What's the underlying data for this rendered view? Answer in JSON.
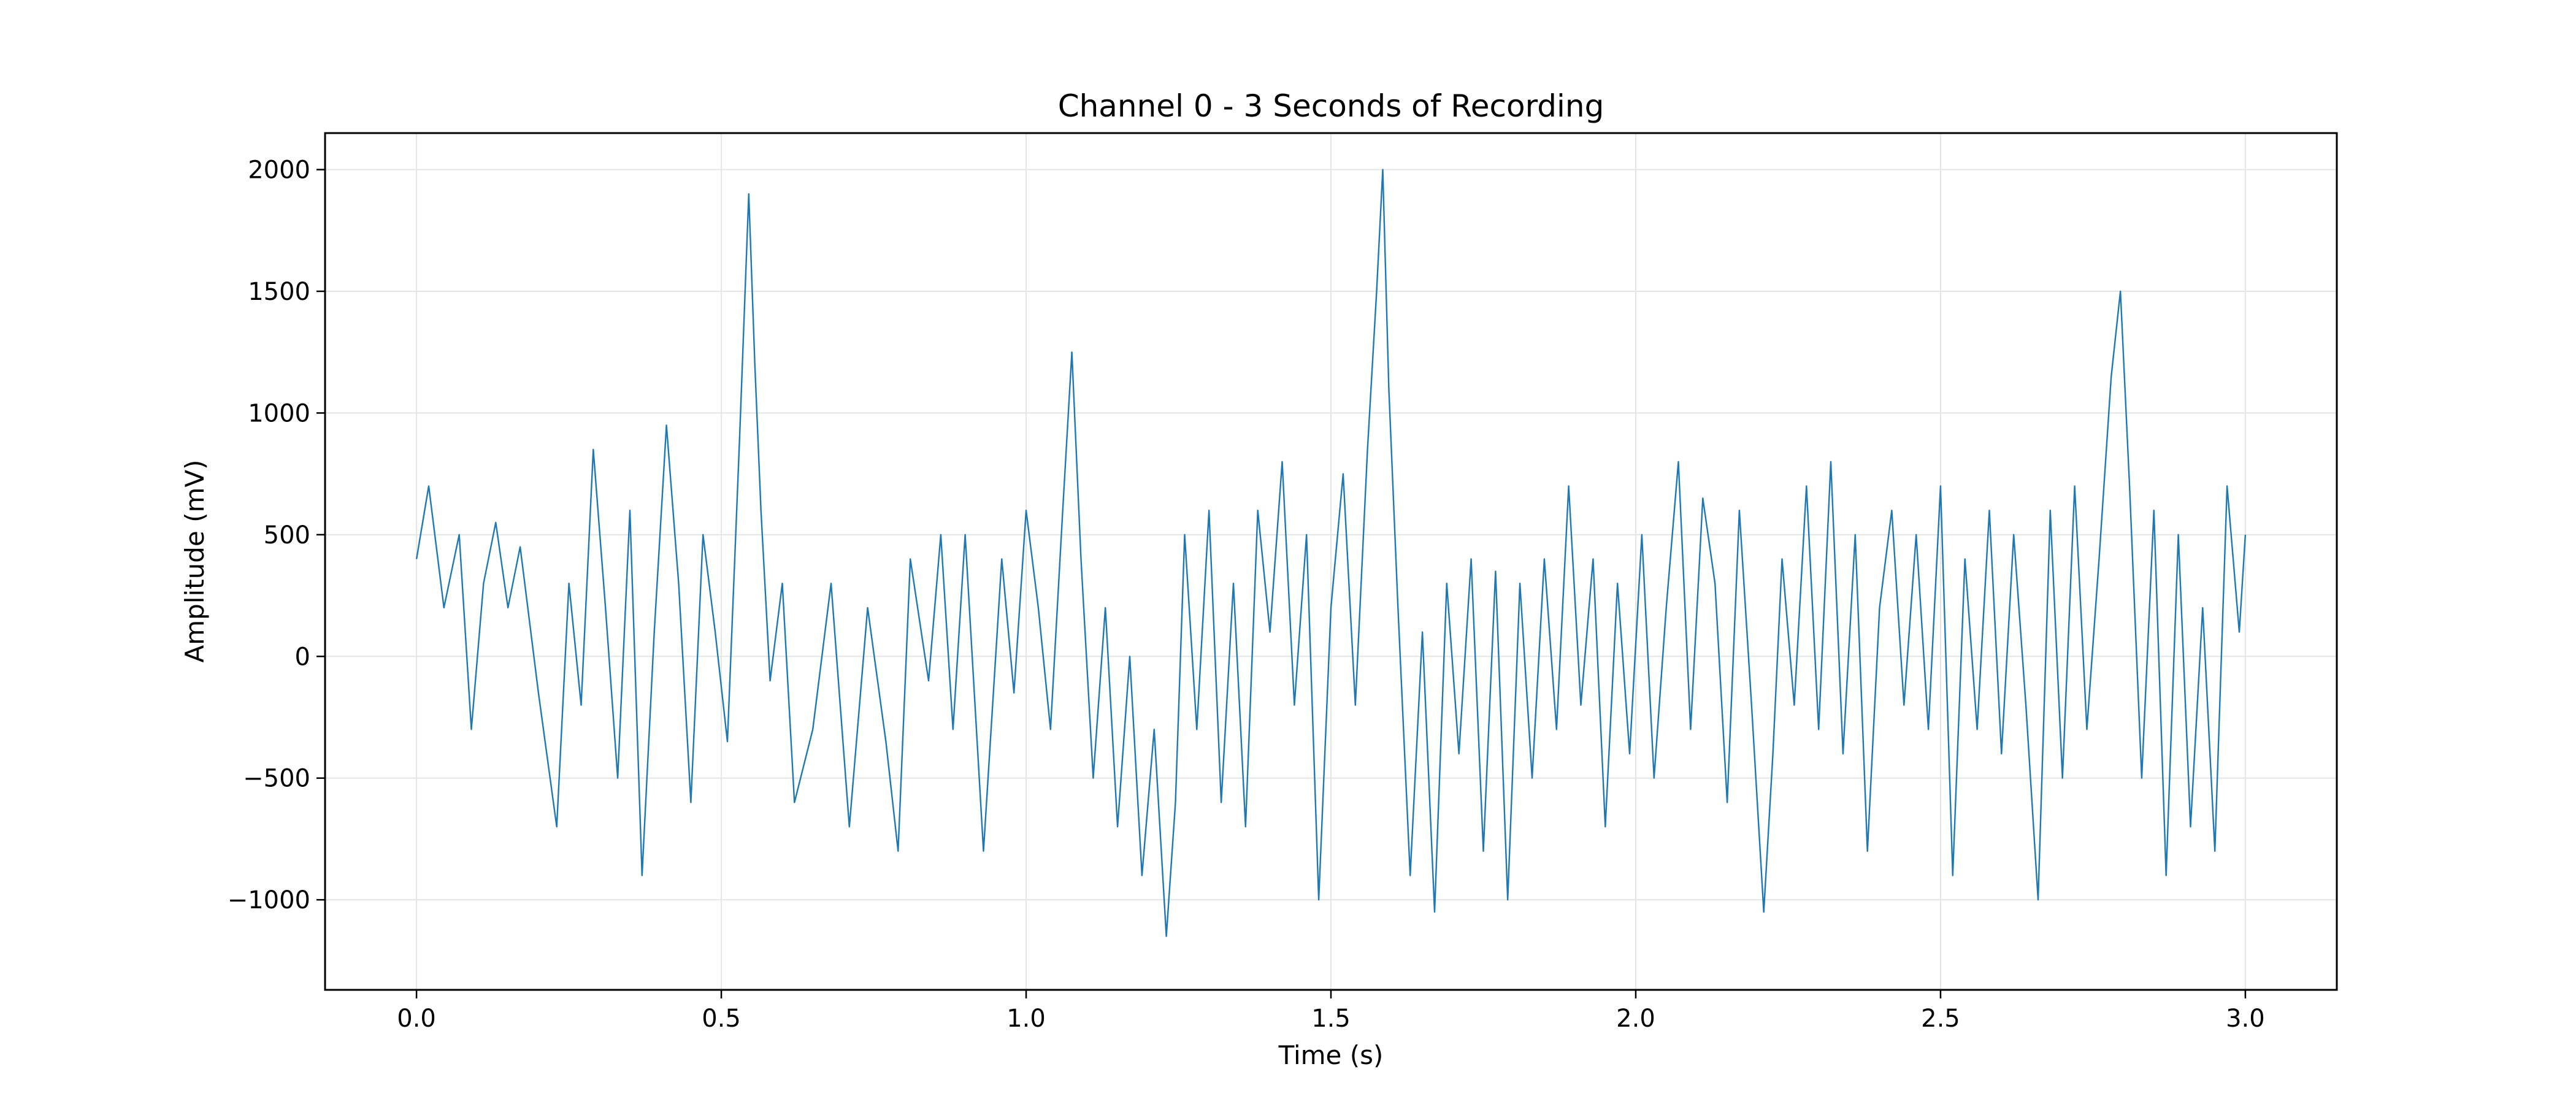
{
  "chart_data": {
    "type": "line",
    "title": "Channel 0 - 3 Seconds of Recording",
    "xlabel": "Time (s)",
    "ylabel": "Amplitude (mV)",
    "xlim": [
      -0.15,
      3.15
    ],
    "ylim": [
      -1370,
      2150
    ],
    "x_ticks": [
      0.0,
      0.5,
      1.0,
      1.5,
      2.0,
      2.5,
      3.0
    ],
    "x_tick_labels": [
      "0.0",
      "0.5",
      "1.0",
      "1.5",
      "2.0",
      "2.5",
      "3.0"
    ],
    "y_ticks": [
      -1000,
      -500,
      0,
      500,
      1000,
      1500,
      2000
    ],
    "y_tick_labels": [
      "−1000",
      "−500",
      "0",
      "500",
      "1000",
      "1500",
      "2000"
    ],
    "grid": true,
    "series": [
      {
        "color": "#1f77b4",
        "x": [
          0.0,
          0.02,
          0.045,
          0.07,
          0.09,
          0.11,
          0.13,
          0.15,
          0.17,
          0.2,
          0.23,
          0.25,
          0.27,
          0.29,
          0.31,
          0.33,
          0.35,
          0.37,
          0.39,
          0.41,
          0.43,
          0.45,
          0.47,
          0.49,
          0.51,
          0.53,
          0.545,
          0.555,
          0.565,
          0.58,
          0.6,
          0.62,
          0.65,
          0.68,
          0.71,
          0.74,
          0.77,
          0.79,
          0.81,
          0.84,
          0.86,
          0.88,
          0.9,
          0.93,
          0.96,
          0.98,
          1.0,
          1.02,
          1.04,
          1.06,
          1.075,
          1.09,
          1.11,
          1.13,
          1.15,
          1.17,
          1.19,
          1.21,
          1.23,
          1.245,
          1.26,
          1.28,
          1.3,
          1.32,
          1.34,
          1.36,
          1.38,
          1.4,
          1.42,
          1.44,
          1.46,
          1.48,
          1.5,
          1.52,
          1.54,
          1.56,
          1.575,
          1.585,
          1.595,
          1.61,
          1.63,
          1.65,
          1.67,
          1.69,
          1.71,
          1.73,
          1.75,
          1.77,
          1.79,
          1.81,
          1.83,
          1.85,
          1.87,
          1.89,
          1.91,
          1.93,
          1.95,
          1.97,
          1.99,
          2.01,
          2.03,
          2.05,
          2.07,
          2.09,
          2.11,
          2.13,
          2.15,
          2.17,
          2.19,
          2.21,
          2.225,
          2.24,
          2.26,
          2.28,
          2.3,
          2.32,
          2.34,
          2.36,
          2.38,
          2.4,
          2.42,
          2.44,
          2.46,
          2.48,
          2.5,
          2.52,
          2.54,
          2.56,
          2.58,
          2.6,
          2.62,
          2.64,
          2.66,
          2.68,
          2.7,
          2.72,
          2.74,
          2.76,
          2.78,
          2.795,
          2.81,
          2.83,
          2.85,
          2.87,
          2.89,
          2.91,
          2.93,
          2.95,
          2.97,
          2.99,
          3.0
        ],
        "y": [
          400,
          700,
          200,
          500,
          -300,
          300,
          550,
          200,
          450,
          -150,
          -700,
          300,
          -200,
          850,
          200,
          -500,
          600,
          -900,
          100,
          950,
          300,
          -600,
          500,
          100,
          -350,
          900,
          1900,
          1200,
          600,
          -100,
          300,
          -600,
          -300,
          300,
          -700,
          200,
          -350,
          -800,
          400,
          -100,
          500,
          -300,
          500,
          -800,
          400,
          -150,
          600,
          200,
          -300,
          600,
          1250,
          400,
          -500,
          200,
          -700,
          0,
          -900,
          -300,
          -1150,
          -600,
          500,
          -300,
          600,
          -600,
          300,
          -700,
          600,
          100,
          800,
          -200,
          500,
          -1000,
          200,
          750,
          -200,
          850,
          1500,
          2000,
          1100,
          200,
          -900,
          100,
          -1050,
          300,
          -400,
          400,
          -800,
          350,
          -1000,
          300,
          -500,
          400,
          -300,
          700,
          -200,
          400,
          -700,
          300,
          -400,
          500,
          -500,
          200,
          800,
          -300,
          650,
          300,
          -600,
          600,
          -200,
          -1050,
          -400,
          400,
          -200,
          700,
          -300,
          800,
          -400,
          500,
          -800,
          200,
          600,
          -200,
          500,
          -300,
          700,
          -900,
          400,
          -300,
          600,
          -400,
          500,
          -200,
          -1000,
          600,
          -500,
          700,
          -300,
          400,
          1150,
          1500,
          700,
          -500,
          600,
          -900,
          500,
          -700,
          200,
          -800,
          700,
          100,
          500
        ]
      }
    ]
  }
}
